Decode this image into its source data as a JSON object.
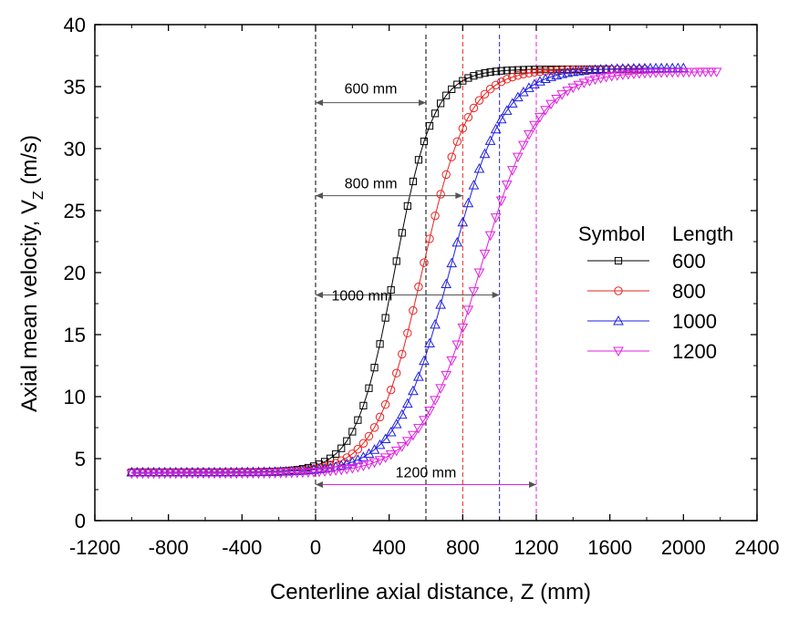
{
  "chart_data": {
    "type": "line",
    "title": "",
    "xlabel": "Centerline axial distance, Z (mm)",
    "ylabel_main": "Axial mean velocity, V",
    "ylabel_sub": "Z",
    "ylabel_unit": " (m/s)",
    "xlim": [
      -1200,
      2400
    ],
    "ylim": [
      0,
      40
    ],
    "xticks": [
      "-1200",
      "-800",
      "-400",
      "0",
      "400",
      "800",
      "1200",
      "1600",
      "2000",
      "2400"
    ],
    "yticks": [
      "0",
      "5",
      "10",
      "15",
      "20",
      "25",
      "30",
      "35",
      "40"
    ],
    "legend": {
      "header_symbol": "Symbol",
      "header_length": "Length",
      "position": "center-right"
    },
    "series": [
      {
        "name": "600",
        "marker": "square",
        "color": "#000000",
        "z0": 0,
        "length": 600,
        "center": 430,
        "width": 105,
        "vmin": 3.9,
        "vmax": 36.4,
        "x_end": 1600,
        "step": 30
      },
      {
        "name": "800",
        "marker": "circle",
        "color": "#e8221f",
        "z0": 0,
        "length": 800,
        "center": 580,
        "width": 125,
        "vmin": 3.9,
        "vmax": 36.4,
        "x_end": 1800,
        "step": 30
      },
      {
        "name": "1000",
        "marker": "triangle-up",
        "color": "#1f1fe0",
        "z0": 0,
        "length": 1000,
        "center": 730,
        "width": 145,
        "vmin": 3.9,
        "vmax": 36.5,
        "x_end": 2000,
        "step": 30
      },
      {
        "name": "1200",
        "marker": "triangle-down",
        "color": "#e01fe0",
        "z0": 0,
        "length": 1200,
        "center": 890,
        "width": 160,
        "vmin": 3.8,
        "vmax": 36.2,
        "x_end": 2200,
        "step": 30
      }
    ],
    "annotations": [
      {
        "label": "600 mm",
        "x_start": 0,
        "x_end": 600,
        "y": 33.7
      },
      {
        "label": "800 mm",
        "x_start": 0,
        "x_end": 800,
        "y": 26.2
      },
      {
        "label": "1000 mm",
        "x_start": 0,
        "x_end": 1000,
        "y": 18.2
      },
      {
        "label": "1200 mm",
        "x_start": 0,
        "x_end": 1200,
        "y": 2.9
      }
    ],
    "vlines": [
      {
        "x": 0,
        "color": "#000000",
        "y_top": 40
      },
      {
        "x": 600,
        "color": "#000000",
        "y_top": 39.2
      },
      {
        "x": 800,
        "color": "#e8221f",
        "y_top": 39.2
      },
      {
        "x": 1000,
        "color": "#1f1fe0",
        "y_top": 39.2
      },
      {
        "x": 1200,
        "color": "#e01fe0",
        "y_top": 39.2
      }
    ]
  }
}
